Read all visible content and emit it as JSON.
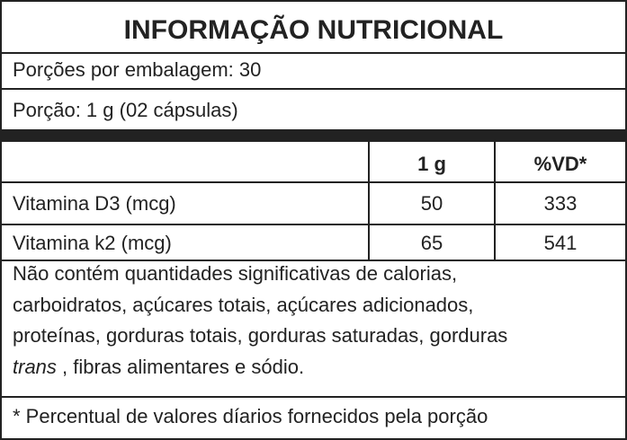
{
  "title": "INFORMAÇÃO NUTRICIONAL",
  "servings_per_package": "Porções por embalagem: 30",
  "serving": "Porção: 1 g (02 cápsulas)",
  "table": {
    "header": [
      "1 g",
      "%VD*"
    ],
    "rows": [
      [
        "Vitamina D3 (mcg)",
        50,
        333
      ],
      [
        "Vitamina k2 (mcg)",
        65,
        541
      ]
    ]
  },
  "note": {
    "lines": [
      "Não contém quantidades significativas de calorias,",
      "carboidratos, açúcares totais, açúcares adicionados,",
      "proteínas, gorduras totais, gorduras saturadas, gorduras"
    ],
    "italic": "trans",
    "rest": " , fibras alimentares e sódio."
  },
  "footnote": "* Percentual de valores díarios fornecidos pela porção"
}
